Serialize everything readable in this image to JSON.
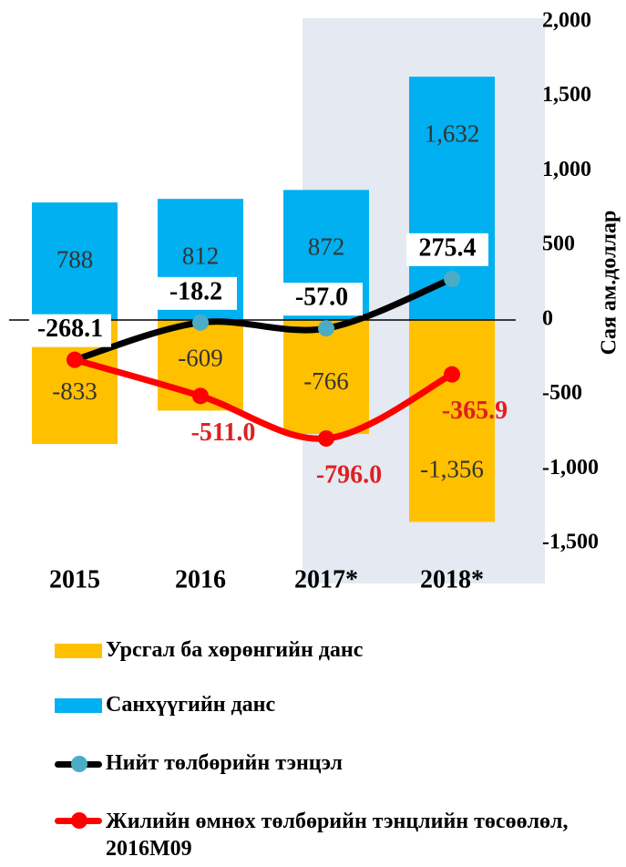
{
  "chart_data": {
    "type": "combo",
    "categories": [
      "2015",
      "2016",
      "2017*",
      "2018*"
    ],
    "y_label": "Сая ам.доллар",
    "ylim": [
      -1500,
      2000
    ],
    "yticks": [
      {
        "value": 2000,
        "label": "2,000"
      },
      {
        "value": 1500,
        "label": "1,500"
      },
      {
        "value": 1000,
        "label": "1,000"
      },
      500,
      0,
      -500,
      {
        "value": -1000,
        "label": "-1,000"
      },
      {
        "value": -1500,
        "label": "-1,500"
      }
    ],
    "series": [
      {
        "name": "Урсгал ба хөрөнгийн данс",
        "type": "bar",
        "color": "#ffc000",
        "values": [
          -833,
          -609,
          -766,
          -1356
        ],
        "value_labels": [
          "-833",
          "-609",
          "-766",
          "-1,356"
        ]
      },
      {
        "name": "Санхүүгийн данс",
        "type": "bar",
        "color": "#00b0f0",
        "values": [
          788,
          812,
          872,
          1632
        ],
        "value_labels": [
          "788",
          "812",
          "872",
          "1,632"
        ]
      },
      {
        "name": "Нийт төлбөрийн тэнцэл",
        "type": "line",
        "color": "#000000",
        "marker_color": "#4bacc6",
        "values": [
          -268.1,
          -18.2,
          -57.0,
          275.4
        ],
        "value_labels": [
          "-268.1",
          "-18.2",
          "-57.0",
          "275.4"
        ]
      },
      {
        "name": "Жилийн өмнөх төлбөрийн тэнцлийн төсөөлөл, 2016М09",
        "type": "line",
        "color": "#ff0000",
        "marker_color": "#ff0000",
        "values": [
          -268.1,
          -511.0,
          -796.0,
          -365.9
        ],
        "value_labels": [
          null,
          "-511.0",
          "-796.0",
          "-365.9"
        ]
      }
    ]
  }
}
